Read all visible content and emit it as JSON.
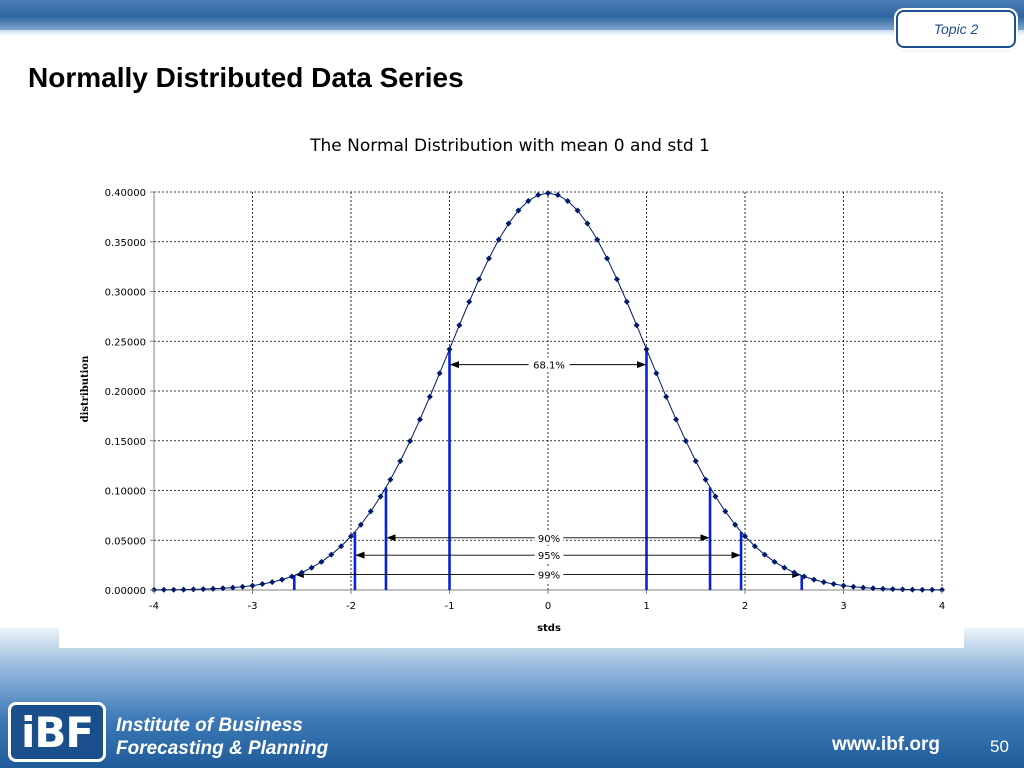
{
  "header": {
    "topic_badge": "Topic 2",
    "title": "Normally Distributed Data Series"
  },
  "footer": {
    "logo_text": "iBF",
    "org_line1": "Institute of Business",
    "org_line2": "Forecasting & Planning",
    "website": "www.ibf.org",
    "page_number": "50"
  },
  "chart_data": {
    "type": "line",
    "title": "The Normal Distribution with mean 0 and std 1",
    "xlabel": "stds",
    "ylabel": "distribution",
    "xlim": [
      -4,
      4
    ],
    "ylim": [
      0,
      0.4
    ],
    "x_ticks": [
      "-4",
      "-3",
      "-2",
      "-1",
      "0",
      "1",
      "2",
      "3",
      "4"
    ],
    "y_ticks": [
      "0.00000",
      "0.05000",
      "0.10000",
      "0.15000",
      "0.20000",
      "0.25000",
      "0.30000",
      "0.35000",
      "0.40000"
    ],
    "grid": true,
    "legend": "none",
    "series": [
      {
        "x": [
          -4.0,
          -3.9,
          -3.8,
          -3.7,
          -3.6,
          -3.5,
          -3.4,
          -3.3,
          -3.2,
          -3.1,
          -3.0,
          -2.9,
          -2.8,
          -2.7,
          -2.6,
          -2.5,
          -2.4,
          -2.3,
          -2.2,
          -2.1,
          -2.0,
          -1.9,
          -1.8,
          -1.7,
          -1.6,
          -1.5,
          -1.4,
          -1.3,
          -1.2,
          -1.1,
          -1.0,
          -0.9,
          -0.8,
          -0.7,
          -0.6,
          -0.5,
          -0.4,
          -0.3,
          -0.2,
          -0.1,
          0.0,
          0.1,
          0.2,
          0.3,
          0.4,
          0.5,
          0.6,
          0.7,
          0.8,
          0.9,
          1.0,
          1.1,
          1.2,
          1.3,
          1.4,
          1.5,
          1.6,
          1.7,
          1.8,
          1.9,
          2.0,
          2.1,
          2.2,
          2.3,
          2.4,
          2.5,
          2.6,
          2.7,
          2.8,
          2.9,
          3.0,
          3.1,
          3.2,
          3.3,
          3.4,
          3.5,
          3.6,
          3.7,
          3.8,
          3.9,
          4.0
        ],
        "y": [
          0.0001,
          0.0002,
          0.0003,
          0.0004,
          0.0006,
          0.0009,
          0.0012,
          0.0017,
          0.0024,
          0.0033,
          0.0044,
          0.006,
          0.0079,
          0.0104,
          0.0136,
          0.0175,
          0.0224,
          0.0283,
          0.0355,
          0.044,
          0.054,
          0.0656,
          0.079,
          0.094,
          0.1109,
          0.1295,
          0.1497,
          0.1714,
          0.1942,
          0.2179,
          0.242,
          0.2661,
          0.2897,
          0.3123,
          0.3332,
          0.3521,
          0.3683,
          0.3814,
          0.391,
          0.397,
          0.3989,
          0.397,
          0.391,
          0.3814,
          0.3683,
          0.3521,
          0.3332,
          0.3123,
          0.2897,
          0.2661,
          0.242,
          0.2179,
          0.1942,
          0.1714,
          0.1497,
          0.1295,
          0.1109,
          0.094,
          0.079,
          0.0656,
          0.054,
          0.044,
          0.0355,
          0.0283,
          0.0224,
          0.0175,
          0.0136,
          0.0104,
          0.0079,
          0.006,
          0.0044,
          0.0033,
          0.0024,
          0.0017,
          0.0012,
          0.0009,
          0.0006,
          0.0004,
          0.0003,
          0.0002,
          0.0001
        ],
        "color": "#001a6e"
      }
    ],
    "vertical_markers": [
      {
        "x": -1.0,
        "y": 0.242
      },
      {
        "x": 1.0,
        "y": 0.242
      },
      {
        "x": -1.645,
        "y": 0.1031
      },
      {
        "x": 1.645,
        "y": 0.1031
      },
      {
        "x": -1.96,
        "y": 0.0584
      },
      {
        "x": 1.96,
        "y": 0.0584
      },
      {
        "x": -2.576,
        "y": 0.0145
      },
      {
        "x": 2.576,
        "y": 0.0145
      }
    ],
    "intervals": [
      {
        "label": "68.1%",
        "from": -1.0,
        "to": 1.0,
        "y": 0.2265
      },
      {
        "label": "90%",
        "from": -1.645,
        "to": 1.645,
        "y": 0.0525
      },
      {
        "label": "95%",
        "from": -1.96,
        "to": 1.96,
        "y": 0.035
      },
      {
        "label": "99%",
        "from": -2.576,
        "to": 2.576,
        "y": 0.0155
      }
    ],
    "colors": {
      "curve": "#001a6e",
      "markers": "#0a22d6",
      "arrows": "#000000"
    }
  }
}
